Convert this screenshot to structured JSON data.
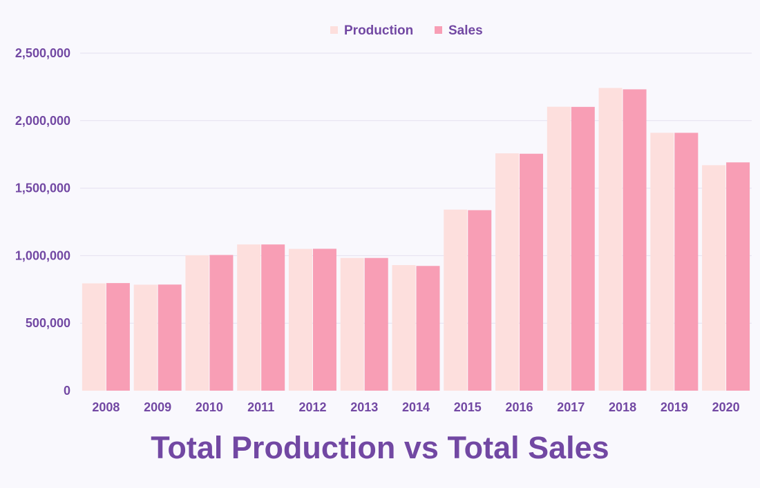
{
  "chart_data": {
    "type": "bar",
    "title": "Total Production vs Total Sales",
    "xlabel": "",
    "ylabel": "",
    "categories": [
      "2008",
      "2009",
      "2010",
      "2011",
      "2012",
      "2013",
      "2014",
      "2015",
      "2016",
      "2017",
      "2018",
      "2019",
      "2020"
    ],
    "series": [
      {
        "name": "Production",
        "color": "#fddfdd",
        "values": [
          795000,
          785000,
          1003000,
          1083000,
          1050000,
          983000,
          930000,
          1341000,
          1758000,
          2103000,
          2242000,
          1910000,
          1670000
        ]
      },
      {
        "name": "Sales",
        "color": "#f89eb5",
        "values": [
          797000,
          786000,
          1005000,
          1083000,
          1051000,
          983000,
          924000,
          1337000,
          1755000,
          2102000,
          2232000,
          1910000,
          1691000
        ]
      }
    ],
    "ylim": [
      0,
      2500000
    ],
    "y_ticks": [
      "0",
      "500,000",
      "1,000,000",
      "1,500,000",
      "2,000,000",
      "2,500,000"
    ],
    "grid": true,
    "legend_position": "top-center",
    "text_color": "#7248a3",
    "grid_color": "#e4e0f0"
  }
}
